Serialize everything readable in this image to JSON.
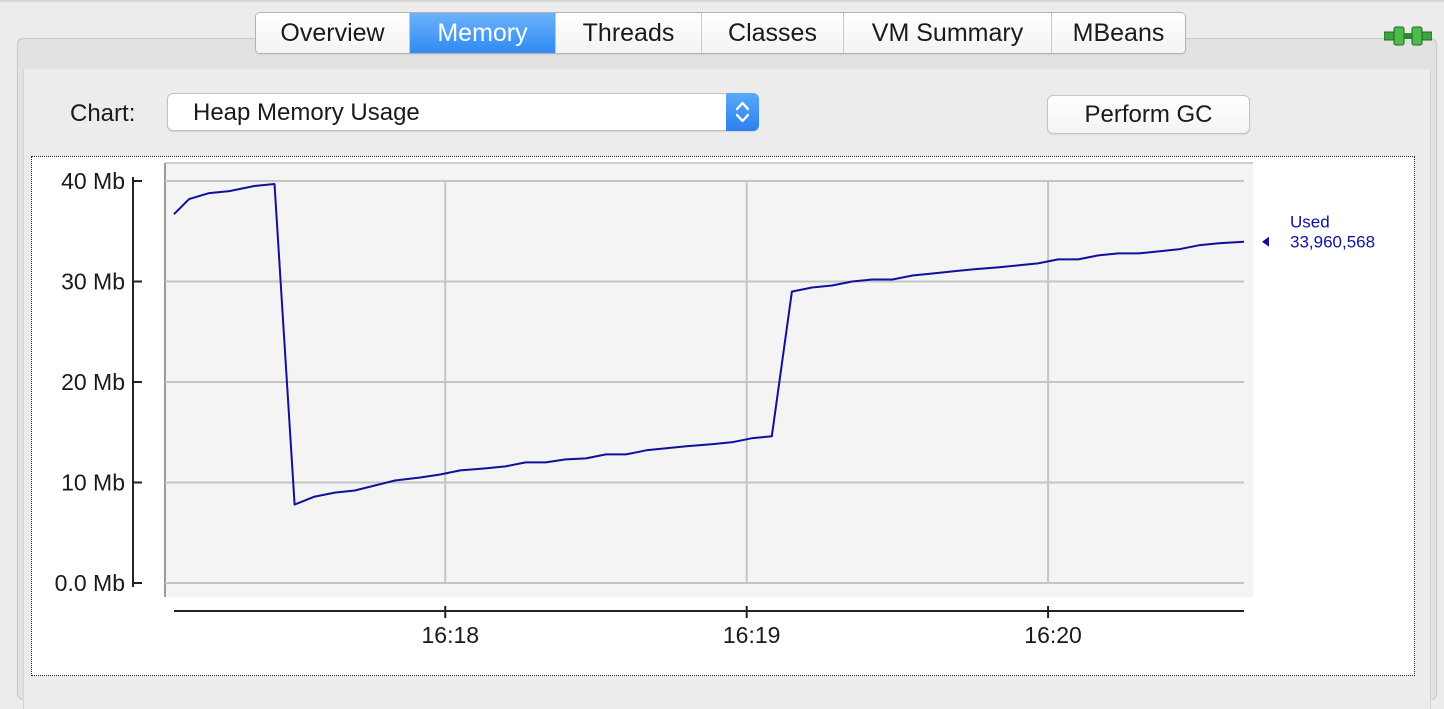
{
  "tabs": [
    {
      "label": "Overview",
      "active": false
    },
    {
      "label": "Memory",
      "active": true
    },
    {
      "label": "Threads",
      "active": false
    },
    {
      "label": "Classes",
      "active": false
    },
    {
      "label": "VM Summary",
      "active": false
    },
    {
      "label": "MBeans",
      "active": false
    }
  ],
  "connection_icon": "plug-connected-icon",
  "controls": {
    "chart_label": "Chart:",
    "chart_select_value": "Heap Memory Usage",
    "perform_gc_label": "Perform GC"
  },
  "colors": {
    "accent": "#2f8af2",
    "series_line": "#10109a",
    "legend_text": "#1010a0",
    "plug_green": "#3da33d"
  },
  "chart_data": {
    "type": "line",
    "title": "",
    "xlabel": "",
    "ylabel": "",
    "y_ticks": [
      "40 Mb",
      "30 Mb",
      "20 Mb",
      "10 Mb",
      "0.0 Mb"
    ],
    "y_tick_values": [
      40,
      30,
      20,
      10,
      0
    ],
    "x_ticks": [
      "16:18",
      "16:19",
      "16:20"
    ],
    "ylim": [
      0,
      40
    ],
    "xlim": [
      "16:17:06",
      "16:20:39"
    ],
    "grid": true,
    "legend": {
      "placement": "right",
      "label": "Used",
      "value": "33,960,568"
    },
    "series": [
      {
        "name": "Used",
        "x": [
          "16:17:06",
          "16:17:09",
          "16:17:13",
          "16:17:17",
          "16:17:22",
          "16:17:26",
          "16:17:30",
          "16:17:34",
          "16:17:38",
          "16:17:42",
          "16:17:46",
          "16:17:50",
          "16:17:55",
          "16:17:59",
          "16:18:03",
          "16:18:08",
          "16:18:12",
          "16:18:16",
          "16:18:20",
          "16:18:24",
          "16:18:28",
          "16:18:32",
          "16:18:36",
          "16:18:40",
          "16:18:44",
          "16:18:48",
          "16:18:53",
          "16:18:57",
          "16:19:01",
          "16:19:05",
          "16:19:09",
          "16:19:13",
          "16:19:17",
          "16:19:21",
          "16:19:25",
          "16:19:29",
          "16:19:33",
          "16:19:37",
          "16:19:41",
          "16:19:45",
          "16:19:50",
          "16:19:54",
          "16:19:58",
          "16:20:02",
          "16:20:06",
          "16:20:10",
          "16:20:14",
          "16:20:18",
          "16:20:22",
          "16:20:26",
          "16:20:30",
          "16:20:34",
          "16:20:39"
        ],
        "y": [
          36.7,
          38.2,
          38.8,
          39.0,
          39.5,
          39.7,
          7.8,
          8.6,
          9.0,
          9.2,
          9.7,
          10.2,
          10.5,
          10.8,
          11.2,
          11.4,
          11.6,
          12.0,
          12.0,
          12.3,
          12.4,
          12.8,
          12.8,
          13.2,
          13.4,
          13.6,
          13.8,
          14.0,
          14.4,
          14.6,
          29.0,
          29.4,
          29.6,
          30.0,
          30.2,
          30.2,
          30.6,
          30.8,
          31.0,
          31.2,
          31.4,
          31.6,
          31.8,
          32.2,
          32.2,
          32.6,
          32.8,
          32.8,
          33.0,
          33.2,
          33.6,
          33.8,
          33.96
        ]
      }
    ]
  }
}
